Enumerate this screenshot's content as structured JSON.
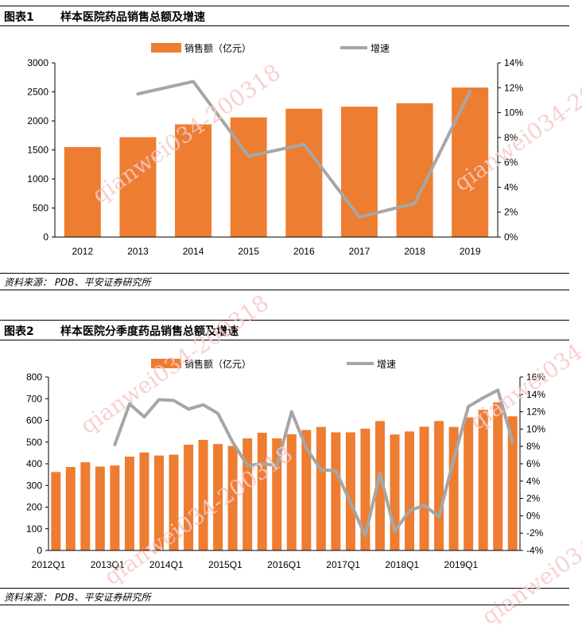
{
  "figures": [
    {
      "number": "图表1",
      "title": "样本医院药品销售总额及增速",
      "source": "资料来源：  PDB、平安证券研究所"
    },
    {
      "number": "图表2",
      "title": "样本医院分季度药品销售总额及增速",
      "source": "资料来源：  PDB、平安证券研究所"
    }
  ],
  "watermark": "qianwei034-200318",
  "colors": {
    "bar": "#ED7D31",
    "line": "#A6A6A6"
  },
  "chart_data": [
    {
      "type": "bar",
      "categories": [
        "2012",
        "2013",
        "2014",
        "2015",
        "2016",
        "2017",
        "2018",
        "2019"
      ],
      "series": [
        {
          "name": "销售额（亿元）",
          "type": "bar",
          "axis": "left",
          "values": [
            1550,
            1720,
            1940,
            2060,
            2210,
            2245,
            2305,
            2575
          ]
        },
        {
          "name": "增速",
          "type": "line",
          "axis": "right",
          "values": [
            null,
            0.115,
            0.125,
            0.065,
            0.0745,
            0.016,
            0.027,
            0.117
          ]
        }
      ],
      "ylim": [
        0,
        3000
      ],
      "y_ticks": [
        "0",
        "500",
        "1000",
        "1500",
        "2000",
        "2500",
        "3000"
      ],
      "y2lim": [
        0,
        0.14
      ],
      "y2_ticks": [
        "0%",
        "2%",
        "4%",
        "6%",
        "8%",
        "10%",
        "12%",
        "14%"
      ],
      "legend_position": "top"
    },
    {
      "type": "bar",
      "categories": [
        "2012Q1",
        "2012Q2",
        "2012Q3",
        "2012Q4",
        "2013Q1",
        "2013Q2",
        "2013Q3",
        "2013Q4",
        "2014Q1",
        "2014Q2",
        "2014Q3",
        "2014Q4",
        "2015Q1",
        "2015Q2",
        "2015Q3",
        "2015Q4",
        "2016Q1",
        "2016Q2",
        "2016Q3",
        "2016Q4",
        "2017Q1",
        "2017Q2",
        "2017Q3",
        "2017Q4",
        "2018Q1",
        "2018Q2",
        "2018Q3",
        "2018Q4",
        "2019Q1",
        "2019Q2",
        "2019Q3",
        "2019Q4"
      ],
      "x_tick_labels": [
        "2012Q1",
        "2013Q1",
        "2014Q1",
        "2015Q1",
        "2016Q1",
        "2017Q1",
        "2018Q1",
        "2019Q1"
      ],
      "series": [
        {
          "name": "销售额（亿元）",
          "type": "bar",
          "axis": "left",
          "values": [
            362,
            385,
            407,
            387,
            392,
            433,
            452,
            438,
            442,
            488,
            510,
            491,
            482,
            517,
            543,
            517,
            536,
            556,
            570,
            545,
            545,
            562,
            597,
            535,
            549,
            571,
            597,
            570,
            614,
            649,
            683,
            619
          ]
        },
        {
          "name": "增速",
          "type": "line",
          "axis": "right",
          "values": [
            null,
            null,
            null,
            null,
            0.082,
            0.129,
            0.114,
            0.134,
            0.133,
            0.123,
            0.128,
            0.118,
            0.085,
            0.058,
            0.06,
            0.058,
            0.12,
            0.078,
            0.053,
            0.052,
            0.015,
            -0.023,
            0.049,
            -0.018,
            0.006,
            0.012,
            -0.001,
            0.065,
            0.126,
            0.136,
            0.145,
            0.085
          ]
        }
      ],
      "ylim": [
        0,
        800
      ],
      "y_ticks": [
        "0",
        "100",
        "200",
        "300",
        "400",
        "500",
        "600",
        "700",
        "800"
      ],
      "y2lim": [
        -0.04,
        0.16
      ],
      "y2_ticks": [
        "-4%",
        "-2%",
        "0%",
        "2%",
        "4%",
        "6%",
        "8%",
        "10%",
        "12%",
        "14%",
        "16%"
      ],
      "legend_position": "top"
    }
  ]
}
